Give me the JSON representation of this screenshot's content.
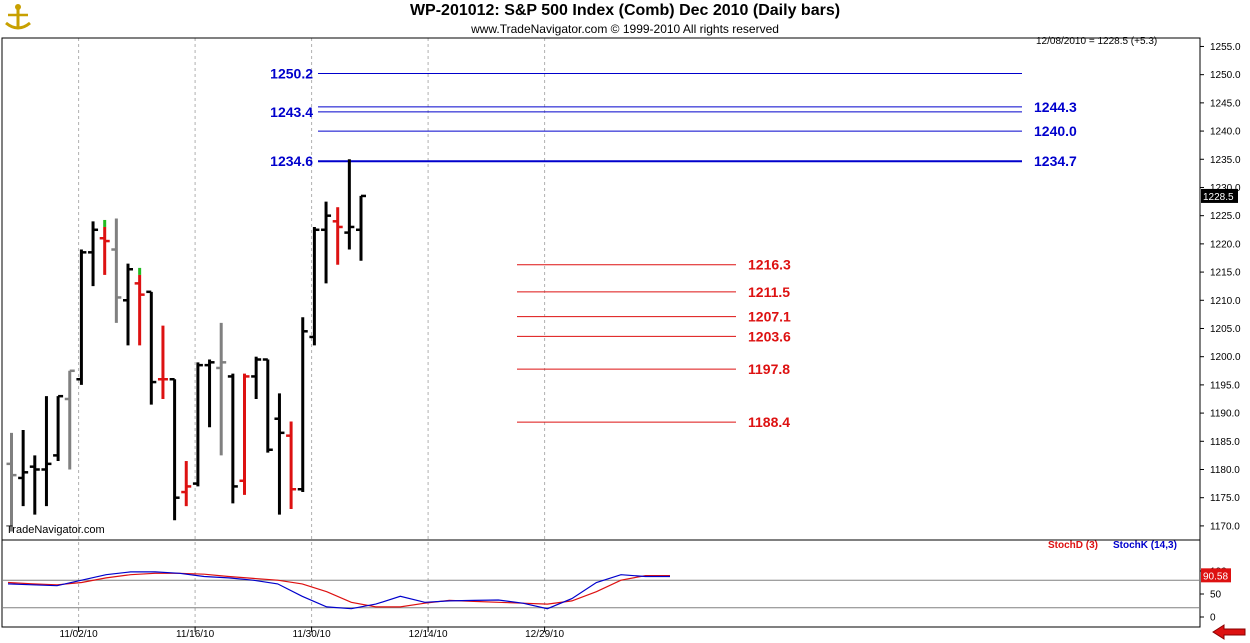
{
  "header": {
    "title": "WP-201012:  S&P 500 Index (Comb) Dec 2010  (Daily bars)",
    "subtitle": "www.TradeNavigator.com © 1999-2010 All rights reserved",
    "credit": "TradeNavigator.com",
    "last_quote": "12/08/2010 = 1228.5 (+5.3)",
    "last_price_tag": "1228.5",
    "last_price_tag_bg": "#000000"
  },
  "colors": {
    "up_bar": "#000000",
    "down_bar": "#dd1111",
    "neutral_bar": "#808080",
    "highlight_tick": "#22bb22",
    "resistance": "#0000cc",
    "support": "#dd1111",
    "stoch_d": "#dd1111",
    "stoch_k": "#0000cc"
  },
  "icons": {
    "logo": "trade-navigator-logo",
    "nav": "left-arrow-icon"
  },
  "chart_data": [
    {
      "type": "ohlc",
      "title": "WP-201012:  S&P 500 Index (Comb) Dec 2010  (Daily bars)",
      "price_axis": {
        "range": [
          1167.5,
          1256.5
        ],
        "ticks": [
          "1255.0",
          "1250.0",
          "1245.0",
          "1240.0",
          "1235.0",
          "1230.0",
          "1225.0",
          "1220.0",
          "1215.0",
          "1210.0",
          "1205.0",
          "1200.0",
          "1195.0",
          "1190.0",
          "1185.0",
          "1180.0",
          "1175.0",
          "1170.0"
        ]
      },
      "date_axis": {
        "ticks": [
          "11/02/10",
          "11/16/10",
          "11/30/10",
          "12/14/10",
          "12/29/10"
        ],
        "tick_bar_index": [
          4,
          14,
          24,
          34,
          44
        ]
      },
      "grid": true,
      "bars": [
        {
          "o": 1181,
          "h": 1186.5,
          "l": 1169,
          "c": 1179,
          "color": "neutral"
        },
        {
          "o": 1178.5,
          "h": 1187,
          "l": 1173.5,
          "c": 1179.5,
          "color": "black"
        },
        {
          "o": 1180.5,
          "h": 1182.5,
          "l": 1172,
          "c": 1180,
          "color": "black"
        },
        {
          "o": 1180,
          "h": 1193,
          "l": 1173.5,
          "c": 1181,
          "color": "black"
        },
        {
          "o": 1182.5,
          "h": 1193,
          "l": 1181.5,
          "c": 1193,
          "color": "black"
        },
        {
          "o": 1192.5,
          "h": 1197.5,
          "l": 1180,
          "c": 1197.5,
          "color": "neutral"
        },
        {
          "o": 1196,
          "h": 1219,
          "l": 1195,
          "c": 1218.5,
          "color": "black"
        },
        {
          "o": 1218.5,
          "h": 1224,
          "l": 1212.5,
          "c": 1222.5,
          "color": "black"
        },
        {
          "o": 1221,
          "h": 1223,
          "l": 1214.5,
          "c": 1220.5,
          "color": "red",
          "high_tick": true
        },
        {
          "o": 1219,
          "h": 1224.5,
          "l": 1206,
          "c": 1210.5,
          "color": "neutral"
        },
        {
          "o": 1210,
          "h": 1216.5,
          "l": 1202,
          "c": 1215.5,
          "color": "black"
        },
        {
          "o": 1213,
          "h": 1214.5,
          "l": 1202,
          "c": 1211,
          "color": "red",
          "high_tick": true
        },
        {
          "o": 1211.5,
          "h": 1211.5,
          "l": 1191.5,
          "c": 1195.5,
          "color": "black"
        },
        {
          "o": 1196,
          "h": 1205.5,
          "l": 1192.5,
          "c": 1196,
          "color": "red"
        },
        {
          "o": 1196,
          "h": 1196,
          "l": 1171,
          "c": 1175,
          "color": "black"
        },
        {
          "o": 1176,
          "h": 1181.5,
          "l": 1173.5,
          "c": 1177,
          "color": "red"
        },
        {
          "o": 1177.5,
          "h": 1199,
          "l": 1177,
          "c": 1198.5,
          "color": "black"
        },
        {
          "o": 1198.5,
          "h": 1199.5,
          "l": 1187.5,
          "c": 1199,
          "color": "black"
        },
        {
          "o": 1198,
          "h": 1206,
          "l": 1182.5,
          "c": 1199,
          "color": "neutral"
        },
        {
          "o": 1196.5,
          "h": 1197,
          "l": 1174,
          "c": 1177,
          "color": "black"
        },
        {
          "o": 1178,
          "h": 1197,
          "l": 1175.5,
          "c": 1196.5,
          "color": "red"
        },
        {
          "o": 1196.5,
          "h": 1200,
          "l": 1192.5,
          "c": 1199.5,
          "color": "black"
        },
        {
          "o": 1199.5,
          "h": 1199.5,
          "l": 1183,
          "c": 1183.5,
          "color": "black"
        },
        {
          "o": 1189,
          "h": 1193.5,
          "l": 1172,
          "c": 1186.5,
          "color": "black"
        },
        {
          "o": 1186,
          "h": 1188.5,
          "l": 1173,
          "c": 1176.5,
          "color": "red"
        },
        {
          "o": 1176.5,
          "h": 1207,
          "l": 1176,
          "c": 1204.5,
          "color": "black"
        },
        {
          "o": 1203.5,
          "h": 1223,
          "l": 1202,
          "c": 1222.5,
          "color": "black"
        },
        {
          "o": 1222.5,
          "h": 1227.5,
          "l": 1213,
          "c": 1225,
          "color": "black"
        },
        {
          "o": 1224,
          "h": 1226.5,
          "l": 1216.3,
          "c": 1223,
          "color": "red"
        },
        {
          "o": 1222,
          "h": 1235,
          "l": 1219,
          "c": 1223,
          "color": "black"
        },
        {
          "o": 1222.5,
          "h": 1228.5,
          "l": 1217,
          "c": 1228.5,
          "color": "black"
        }
      ],
      "resistance_lines": [
        {
          "left_label": "1250.2",
          "right_label": "",
          "value": 1250.2
        },
        {
          "left_label": "1243.4",
          "right_label": "",
          "value": 1243.4
        },
        {
          "left_label": "",
          "right_label": "1244.3",
          "value": 1244.3
        },
        {
          "left_label": "",
          "right_label": "1240.0",
          "value": 1240.0
        },
        {
          "left_label": "1234.6",
          "right_label": "1234.7",
          "value": 1234.65,
          "bold": true
        }
      ],
      "support_lines": [
        {
          "label": "1216.3",
          "value": 1216.3
        },
        {
          "label": "1211.5",
          "value": 1211.5
        },
        {
          "label": "1207.1",
          "value": 1207.1
        },
        {
          "label": "1203.6",
          "value": 1203.6
        },
        {
          "label": "1197.8",
          "value": 1197.8
        },
        {
          "label": "1188.4",
          "value": 1188.4
        }
      ]
    },
    {
      "type": "line",
      "series": [
        {
          "name": "StochD (3)",
          "values": [
            75,
            72,
            70,
            75,
            85,
            92,
            95,
            95,
            93,
            88,
            84,
            80,
            72,
            55,
            32,
            22,
            22,
            30,
            36,
            34,
            32,
            30,
            28,
            35,
            55,
            80,
            90,
            90
          ]
        },
        {
          "name": "StochK (14,3)",
          "values": [
            72,
            70,
            68,
            80,
            92,
            98,
            98,
            95,
            88,
            85,
            80,
            72,
            45,
            22,
            18,
            28,
            45,
            32,
            35,
            36,
            37,
            30,
            18,
            40,
            75,
            92,
            88,
            88
          ]
        }
      ],
      "y_axis_ticks": [
        "100",
        "50",
        "0"
      ],
      "reference_lines": [
        80,
        20
      ],
      "last_value_tag": "90.58"
    }
  ]
}
